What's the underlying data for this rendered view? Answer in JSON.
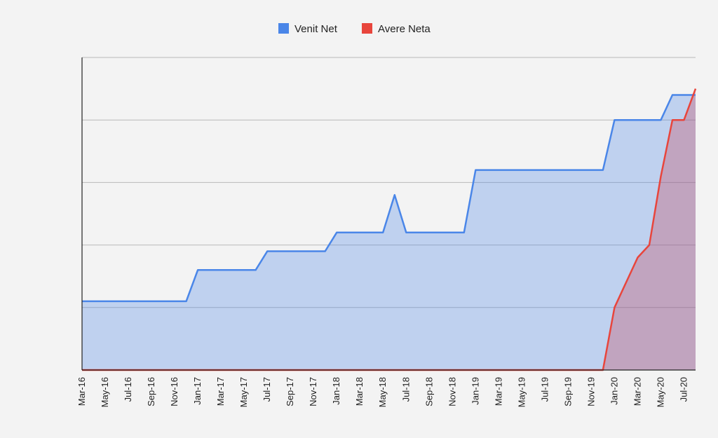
{
  "chart_data": {
    "type": "area",
    "x": [
      "Mar-16",
      "Apr-16",
      "May-16",
      "Jun-16",
      "Jul-16",
      "Aug-16",
      "Sep-16",
      "Oct-16",
      "Nov-16",
      "Dec-16",
      "Jan-17",
      "Feb-17",
      "Mar-17",
      "Apr-17",
      "May-17",
      "Jun-17",
      "Jul-17",
      "Aug-17",
      "Sep-17",
      "Oct-17",
      "Nov-17",
      "Dec-17",
      "Jan-18",
      "Feb-18",
      "Mar-18",
      "Apr-18",
      "May-18",
      "Jun-18",
      "Jul-18",
      "Aug-18",
      "Sep-18",
      "Oct-18",
      "Nov-18",
      "Dec-18",
      "Jan-19",
      "Feb-19",
      "Mar-19",
      "Apr-19",
      "May-19",
      "Jun-19",
      "Jul-19",
      "Aug-19",
      "Sep-19",
      "Oct-19",
      "Nov-19",
      "Dec-19",
      "Jan-20",
      "Feb-20",
      "Mar-20",
      "Apr-20",
      "May-20",
      "Jun-20",
      "Jul-20",
      "Aug-20"
    ],
    "tick_labels": [
      "Mar-16",
      "May-16",
      "Jul-16",
      "Sep-16",
      "Nov-16",
      "Jan-17",
      "Mar-17",
      "May-17",
      "Jul-17",
      "Sep-17",
      "Nov-17",
      "Jan-18",
      "Mar-18",
      "May-18",
      "Jul-18",
      "Sep-18",
      "Nov-18",
      "Jan-19",
      "Mar-19",
      "May-19",
      "Jul-19",
      "Sep-19",
      "Nov-19",
      "Jan-20",
      "Mar-20",
      "May-20",
      "Jul-20"
    ],
    "series": [
      {
        "name": "Venit Net",
        "color": "#4a86e8",
        "values": [
          1.1,
          1.1,
          1.1,
          1.1,
          1.1,
          1.1,
          1.1,
          1.1,
          1.1,
          1.1,
          1.6,
          1.6,
          1.6,
          1.6,
          1.6,
          1.6,
          1.9,
          1.9,
          1.9,
          1.9,
          1.9,
          1.9,
          2.2,
          2.2,
          2.2,
          2.2,
          2.2,
          2.8,
          2.2,
          2.2,
          2.2,
          2.2,
          2.2,
          2.2,
          3.2,
          3.2,
          3.2,
          3.2,
          3.2,
          3.2,
          3.2,
          3.2,
          3.2,
          3.2,
          3.2,
          3.2,
          4.0,
          4.0,
          4.0,
          4.0,
          4.0,
          4.4,
          4.4,
          4.4
        ]
      },
      {
        "name": "Avere Neta",
        "color": "#e8453c",
        "values": [
          0,
          0,
          0,
          0,
          0,
          0,
          0,
          0,
          0,
          0,
          0,
          0,
          0,
          0,
          0,
          0,
          0,
          0,
          0,
          0,
          0,
          0,
          0,
          0,
          0,
          0,
          0,
          0,
          0,
          0,
          0,
          0,
          0,
          0,
          0,
          0,
          0,
          0,
          0,
          0,
          0,
          0,
          0,
          0,
          0,
          0,
          1.0,
          1.4,
          1.8,
          2.0,
          3.1,
          4.0,
          4.0,
          4.5
        ]
      }
    ],
    "ylim": [
      0,
      5
    ],
    "gridlines": [
      1,
      2,
      3,
      4,
      5
    ],
    "y_tick_labels": "hidden",
    "grid": true,
    "legend_position": "top",
    "title": "",
    "xlabel": "",
    "ylabel": ""
  }
}
